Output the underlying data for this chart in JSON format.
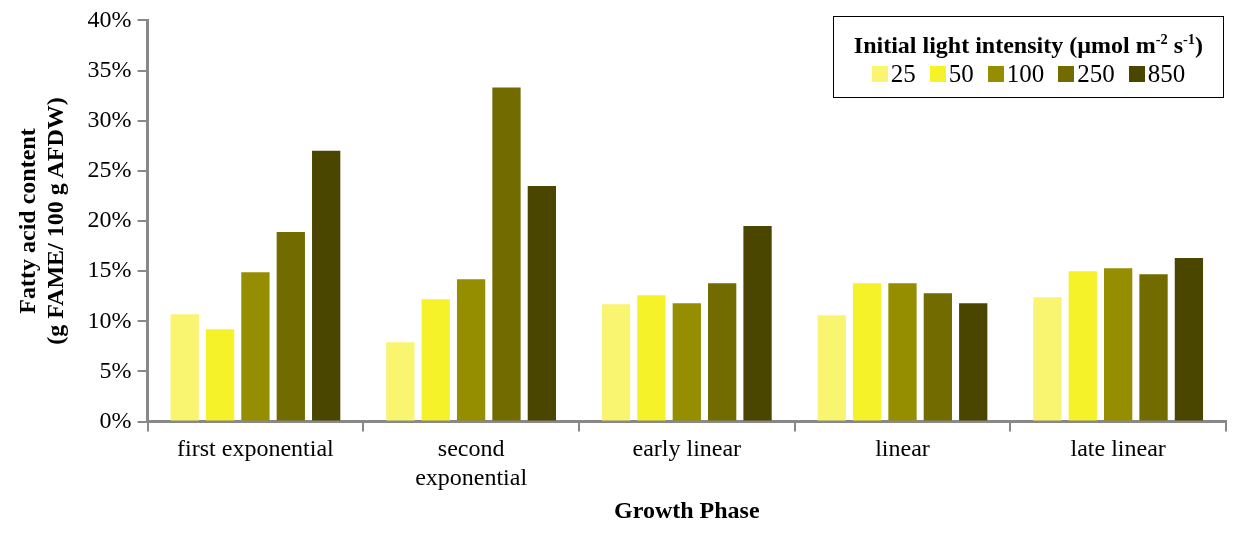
{
  "chart_data": {
    "type": "bar",
    "xlabel": "Growth Phase",
    "ylabel": "Fatty acid content\n(g FAME/ 100 g AFDW)",
    "legend_title": "Initial light intensity (µmol m$^{-2}$ s$^{-1}$)",
    "legend": "top right",
    "grid": false,
    "categories": [
      "first exponential",
      "second exponential",
      "early linear",
      "linear",
      "late linear"
    ],
    "series": [
      {
        "name": "25",
        "color": "#faf570",
        "values": [
          10.7,
          7.9,
          11.7,
          10.6,
          12.4
        ]
      },
      {
        "name": "50",
        "color": "#f5f22a",
        "values": [
          9.2,
          12.2,
          12.6,
          13.8,
          15.0
        ]
      },
      {
        "name": "100",
        "color": "#958e00",
        "values": [
          14.9,
          14.2,
          11.8,
          13.8,
          15.3
        ]
      },
      {
        "name": "250",
        "color": "#726b00",
        "values": [
          18.9,
          33.3,
          13.8,
          12.8,
          14.7
        ]
      },
      {
        "name": "850",
        "color": "#4a4600",
        "values": [
          27.0,
          23.5,
          19.5,
          11.8,
          16.3
        ]
      }
    ],
    "ylim": [
      0,
      40
    ],
    "yticks": [
      {
        "value": 0,
        "label": "0%"
      },
      {
        "value": 5,
        "label": "5%"
      },
      {
        "value": 10,
        "label": "10%"
      },
      {
        "value": 15,
        "label": "15%"
      },
      {
        "value": 20,
        "label": "20%"
      },
      {
        "value": 25,
        "label": "25%"
      },
      {
        "value": 30,
        "label": "30%"
      },
      {
        "value": 35,
        "label": "35%"
      },
      {
        "value": 40,
        "label": "40%"
      }
    ]
  }
}
